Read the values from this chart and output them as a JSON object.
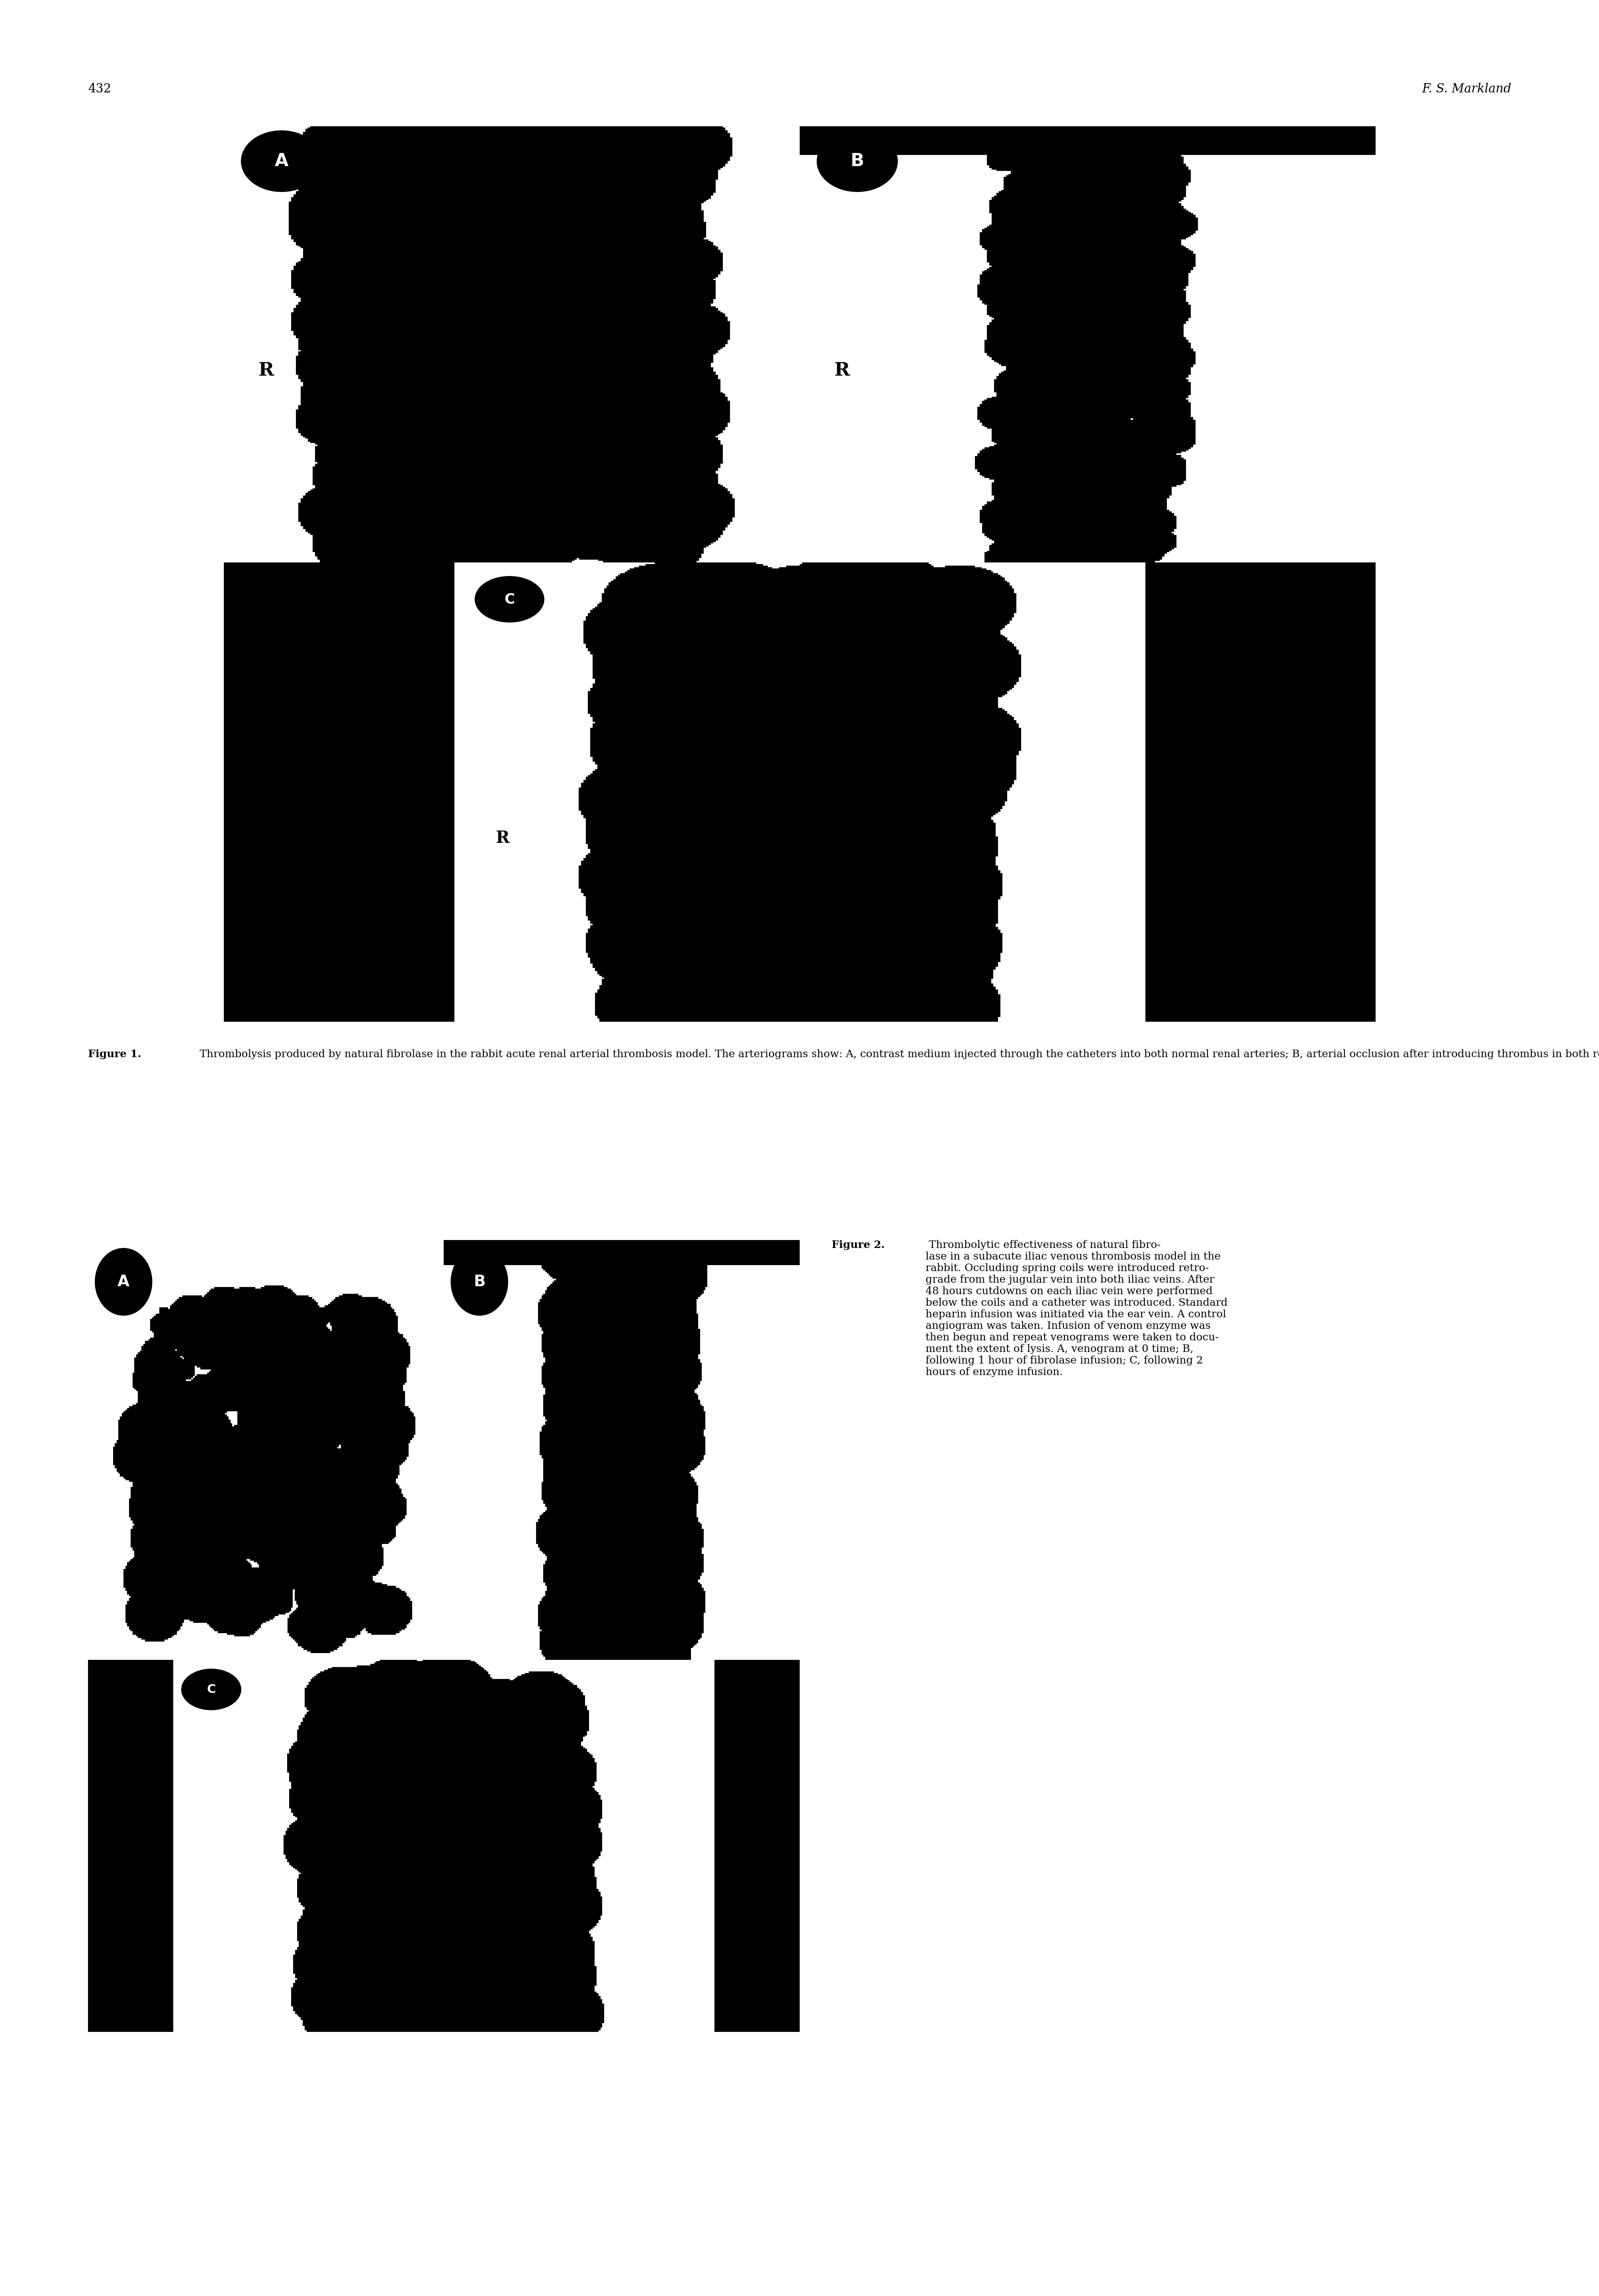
{
  "page_number": "432",
  "author": "F. S. Markland",
  "background_color": "#ffffff",
  "figure1": {
    "caption_bold": "Figure 1.",
    "caption_text": " Thrombolysis produced by natural fibrolase in the rabbit acute renal arterial thrombosis model. The arteriograms show: A, contrast medium injected through the catheters into both normal renal arteries; B, arterial occlusion after introducing thrombus in both renal arteries; C, after infusion of fibrolase into the occluded left renal artery there is almost complete clearance of the clot at 30 min. Note the lack of clearance in the non-infused (right) kidney. After 4 hours the right renal artery remained occluded, but was cleared after a 20 min infusion of fibrolase directly into the right renal artery."
  },
  "figure2": {
    "caption_bold": "Figure 2.",
    "caption_text": " Thrombolytic effectiveness of natural fibro-\nlase in a subacute iliac venous thrombosis model in the\nrabbit. Occluding spring coils were introduced retro-\ngrade from the jugular vein into both iliac veins. After\n48 hours cutdowns on each iliac vein were performed\nbelow the coils and a catheter was introduced. Standard\nheparin infusion was initiated via the ear vein. A control\nangiogram was taken. Infusion of venom enzyme was\nthen begun and repeat venograms were taken to docu-\nment the extent of lysis. A, venogram at 0 time; B,\nfollowing 1 hour of fibrolase infusion; C, following 2\nhours of enzyme infusion."
  }
}
